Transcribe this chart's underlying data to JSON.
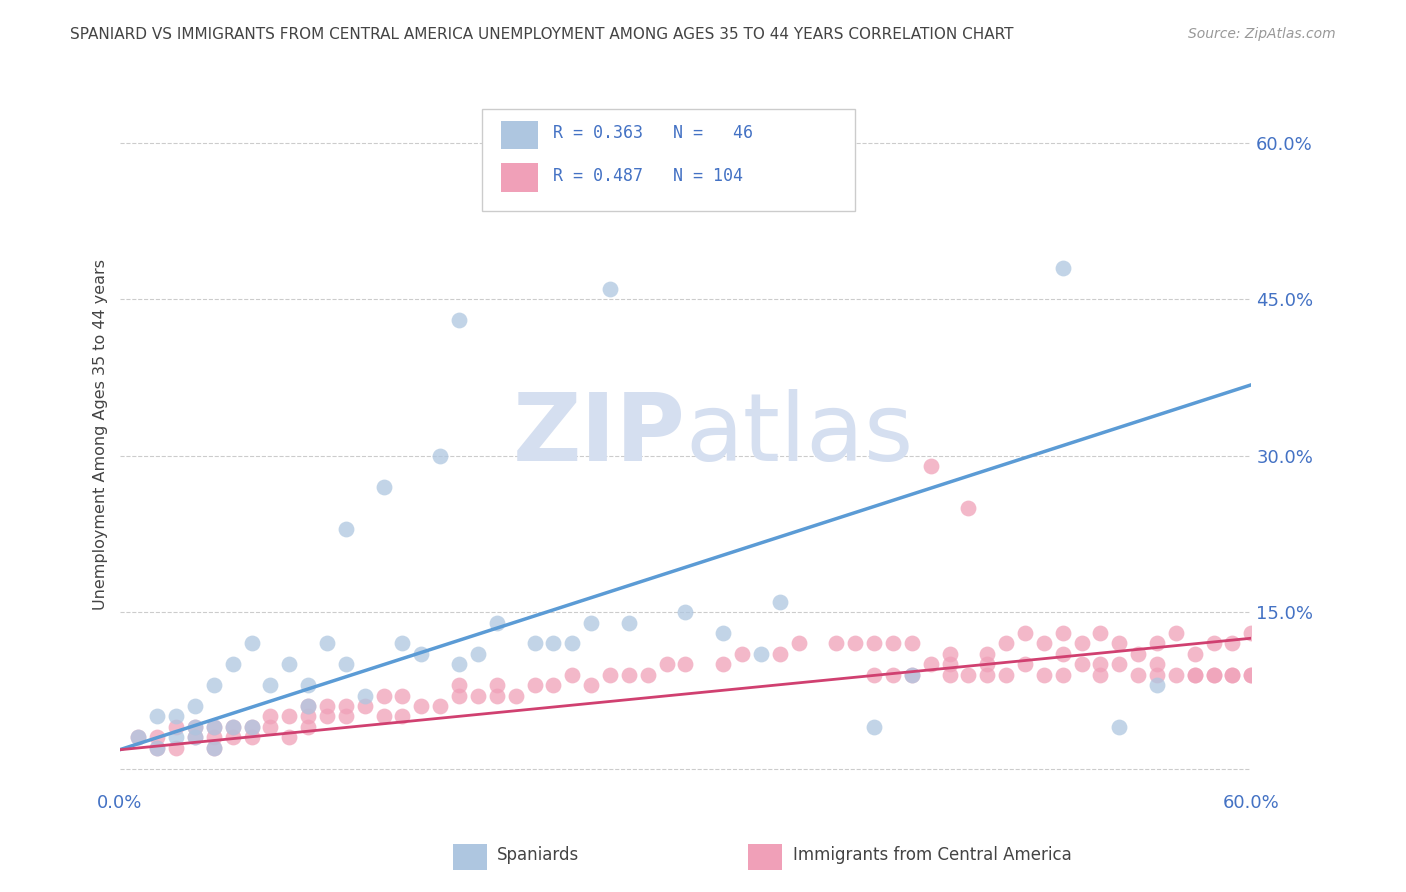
{
  "title": "SPANIARD VS IMMIGRANTS FROM CENTRAL AMERICA UNEMPLOYMENT AMONG AGES 35 TO 44 YEARS CORRELATION CHART",
  "source_text": "Source: ZipAtlas.com",
  "ylabel": "Unemployment Among Ages 35 to 44 years",
  "xlim": [
    0.0,
    0.6
  ],
  "ylim": [
    -0.02,
    0.66
  ],
  "yticks": [
    0.0,
    0.15,
    0.3,
    0.45,
    0.6
  ],
  "blue_scatter_x": [
    0.01,
    0.02,
    0.02,
    0.03,
    0.03,
    0.04,
    0.04,
    0.04,
    0.05,
    0.05,
    0.05,
    0.06,
    0.06,
    0.07,
    0.07,
    0.08,
    0.09,
    0.1,
    0.1,
    0.11,
    0.12,
    0.12,
    0.13,
    0.14,
    0.15,
    0.16,
    0.17,
    0.18,
    0.18,
    0.19,
    0.2,
    0.22,
    0.23,
    0.24,
    0.25,
    0.26,
    0.27,
    0.3,
    0.32,
    0.34,
    0.35,
    0.4,
    0.42,
    0.5,
    0.53,
    0.55
  ],
  "blue_scatter_y": [
    0.03,
    0.02,
    0.05,
    0.03,
    0.05,
    0.03,
    0.04,
    0.06,
    0.02,
    0.04,
    0.08,
    0.04,
    0.1,
    0.04,
    0.12,
    0.08,
    0.1,
    0.06,
    0.08,
    0.12,
    0.1,
    0.23,
    0.07,
    0.27,
    0.12,
    0.11,
    0.3,
    0.1,
    0.43,
    0.11,
    0.14,
    0.12,
    0.12,
    0.12,
    0.14,
    0.46,
    0.14,
    0.15,
    0.13,
    0.11,
    0.16,
    0.04,
    0.09,
    0.48,
    0.04,
    0.08
  ],
  "pink_scatter_x": [
    0.01,
    0.02,
    0.02,
    0.03,
    0.03,
    0.04,
    0.04,
    0.05,
    0.05,
    0.05,
    0.06,
    0.06,
    0.07,
    0.07,
    0.08,
    0.08,
    0.09,
    0.09,
    0.1,
    0.1,
    0.1,
    0.11,
    0.11,
    0.12,
    0.12,
    0.13,
    0.14,
    0.14,
    0.15,
    0.15,
    0.16,
    0.17,
    0.18,
    0.18,
    0.19,
    0.2,
    0.2,
    0.21,
    0.22,
    0.23,
    0.24,
    0.25,
    0.26,
    0.27,
    0.28,
    0.29,
    0.3,
    0.32,
    0.33,
    0.35,
    0.36,
    0.38,
    0.39,
    0.4,
    0.41,
    0.42,
    0.43,
    0.44,
    0.45,
    0.46,
    0.47,
    0.48,
    0.49,
    0.5,
    0.51,
    0.52,
    0.53,
    0.54,
    0.55,
    0.56,
    0.57,
    0.58,
    0.59,
    0.6,
    0.43,
    0.44,
    0.46,
    0.48,
    0.5,
    0.51,
    0.52,
    0.53,
    0.55,
    0.56,
    0.57,
    0.58,
    0.59,
    0.6,
    0.4,
    0.42,
    0.45,
    0.47,
    0.49,
    0.5,
    0.52,
    0.54,
    0.55,
    0.57,
    0.58,
    0.59,
    0.6,
    0.41,
    0.44,
    0.46
  ],
  "pink_scatter_y": [
    0.03,
    0.03,
    0.02,
    0.04,
    0.02,
    0.03,
    0.04,
    0.02,
    0.03,
    0.04,
    0.03,
    0.04,
    0.03,
    0.04,
    0.04,
    0.05,
    0.03,
    0.05,
    0.04,
    0.05,
    0.06,
    0.05,
    0.06,
    0.05,
    0.06,
    0.06,
    0.05,
    0.07,
    0.05,
    0.07,
    0.06,
    0.06,
    0.07,
    0.08,
    0.07,
    0.07,
    0.08,
    0.07,
    0.08,
    0.08,
    0.09,
    0.08,
    0.09,
    0.09,
    0.09,
    0.1,
    0.1,
    0.1,
    0.11,
    0.11,
    0.12,
    0.12,
    0.12,
    0.12,
    0.12,
    0.12,
    0.29,
    0.11,
    0.25,
    0.11,
    0.12,
    0.13,
    0.12,
    0.13,
    0.12,
    0.13,
    0.12,
    0.11,
    0.12,
    0.13,
    0.11,
    0.12,
    0.12,
    0.13,
    0.1,
    0.1,
    0.1,
    0.1,
    0.11,
    0.1,
    0.1,
    0.1,
    0.1,
    0.09,
    0.09,
    0.09,
    0.09,
    0.09,
    0.09,
    0.09,
    0.09,
    0.09,
    0.09,
    0.09,
    0.09,
    0.09,
    0.09,
    0.09,
    0.09,
    0.09,
    0.09,
    0.09,
    0.09,
    0.09
  ],
  "blue_line_x": [
    0.0,
    0.6
  ],
  "blue_line_y": [
    0.018,
    0.368
  ],
  "pink_line_x": [
    0.0,
    0.6
  ],
  "pink_line_y": [
    0.018,
    0.125
  ],
  "blue_color": "#5b9bd5",
  "blue_scatter_color": "#aec6e0",
  "pink_color": "#d04070",
  "pink_scatter_color": "#f0a0b8",
  "bg_color": "#ffffff",
  "grid_color": "#cccccc",
  "text_color": "#444444",
  "axis_tick_color": "#4472c4",
  "legend_text_color": "#4472c4",
  "watermark_color": "#d5dff0",
  "legend_labels": [
    "Spaniards",
    "Immigrants from Central America"
  ],
  "legend_r1": "R = 0.363",
  "legend_n1": "N =   46",
  "legend_r2": "R = 0.487",
  "legend_n2": "N = 104"
}
